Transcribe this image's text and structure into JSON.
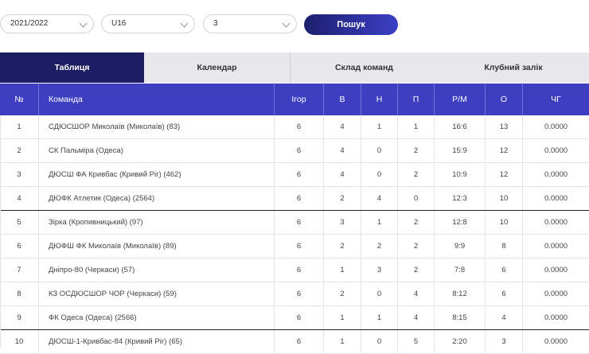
{
  "filters": {
    "season": "2021/2022",
    "age_group": "U16",
    "group": "3",
    "search_label": "Пошук"
  },
  "tabs": [
    {
      "label": "Таблиця",
      "active": true
    },
    {
      "label": "Календар",
      "active": false
    },
    {
      "label": "Склад команд",
      "active": false
    },
    {
      "label": "Клубний залік",
      "active": false
    }
  ],
  "table": {
    "headers": [
      "№",
      "Команда",
      "Ігор",
      "В",
      "Н",
      "П",
      "Р/М",
      "О",
      "ЧГ"
    ],
    "rows": [
      [
        "1",
        "СДЮСШОР Миколаїв (Миколаїв) (83)",
        "6",
        "4",
        "1",
        "1",
        "16:6",
        "13",
        "0.0000"
      ],
      [
        "2",
        "СК Пальміра (Одеса)",
        "6",
        "4",
        "0",
        "2",
        "15:9",
        "12",
        "0.0000"
      ],
      [
        "3",
        "ДЮСШ ФА Кривбас (Кривий Ріг) (462)",
        "6",
        "4",
        "0",
        "2",
        "10:9",
        "12",
        "0.0000"
      ],
      [
        "4",
        "ДЮФК Атлетик (Одеса) (2564)",
        "6",
        "2",
        "4",
        "0",
        "12:3",
        "10",
        "0.0000"
      ],
      [
        "5",
        "Зірка (Кропивницький) (97)",
        "6",
        "3",
        "1",
        "2",
        "12:8",
        "10",
        "0.0000"
      ],
      [
        "6",
        "ДЮФШ ФК Миколаїв (Миколаїв) (89)",
        "6",
        "2",
        "2",
        "2",
        "9:9",
        "8",
        "0.0000"
      ],
      [
        "7",
        "Дніпро-80 (Черкаси) (57)",
        "6",
        "1",
        "3",
        "2",
        "7:8",
        "6",
        "0.0000"
      ],
      [
        "8",
        "КЗ ОСДЮСШОР ЧОР (Черкаси) (59)",
        "6",
        "2",
        "0",
        "4",
        "8:12",
        "6",
        "0.0000"
      ],
      [
        "9",
        "ФК Одеса (Одеса) (2566)",
        "6",
        "1",
        "1",
        "4",
        "8:15",
        "4",
        "0.0000"
      ],
      [
        "10",
        "ДЮСШ-1-Кривбас-84 (Кривий Ріг) (65)",
        "6",
        "1",
        "0",
        "5",
        "2:20",
        "3",
        "0.0000"
      ]
    ]
  }
}
